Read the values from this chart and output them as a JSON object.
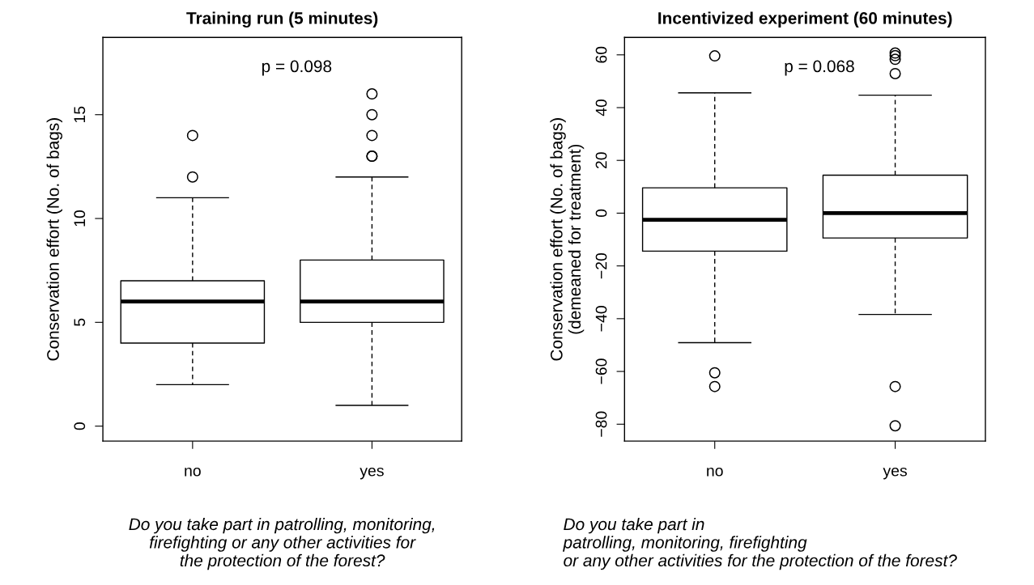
{
  "chart_data": [
    {
      "type": "box",
      "title": "Training run (5 minutes)",
      "ylabel": "Conservation effort (No. of bags)",
      "xlabel": "Do you take part in patrolling, monitoring,\nfirefighting or any other activities for\nthe protection of the forest?",
      "categories": [
        "no",
        "yes"
      ],
      "boxes": [
        {
          "low": 2,
          "q1": 4,
          "median": 6,
          "q3": 7,
          "high": 11,
          "outliers": [
            12,
            14
          ]
        },
        {
          "low": 1,
          "q1": 5,
          "median": 6,
          "q3": 8,
          "high": 12,
          "outliers": [
            13,
            13,
            14,
            15,
            16
          ]
        }
      ],
      "ylim": [
        -0.72,
        18.72
      ],
      "yticks": [
        0,
        5,
        10,
        15
      ],
      "annotations": [
        "p = 0.098"
      ]
    },
    {
      "type": "box",
      "title": "Incentivized experiment (60 minutes)",
      "ylabel": "Conservation effort (No. of bags)\n(demeaned for treatment)",
      "xlabel": "Do you take part in\npatrolling, monitoring, firefighting\nor any other activities for the protection of the forest?",
      "categories": [
        "no",
        "yes"
      ],
      "boxes": [
        {
          "low": -49.1,
          "q1": -14.4,
          "median": -2.5,
          "q3": 9.6,
          "high": 45.6,
          "outliers": [
            59.6,
            -60.5,
            -65.7
          ]
        },
        {
          "low": -38.4,
          "q1": -9.4,
          "median": 0,
          "q3": 14.4,
          "high": 44.7,
          "outliers": [
            60.7,
            59.7,
            58.3,
            52.9,
            -65.7,
            -80.6
          ]
        }
      ],
      "ylim": [
        -86.4,
        66.6
      ],
      "yticks": [
        {
          "value": -80,
          "label": "−80"
        },
        {
          "value": -60,
          "label": "−60"
        },
        {
          "value": -40,
          "label": "−40"
        },
        {
          "value": -20,
          "label": "−20"
        },
        0,
        20,
        40,
        60
      ],
      "annotations": [
        "p = 0.068"
      ]
    }
  ]
}
